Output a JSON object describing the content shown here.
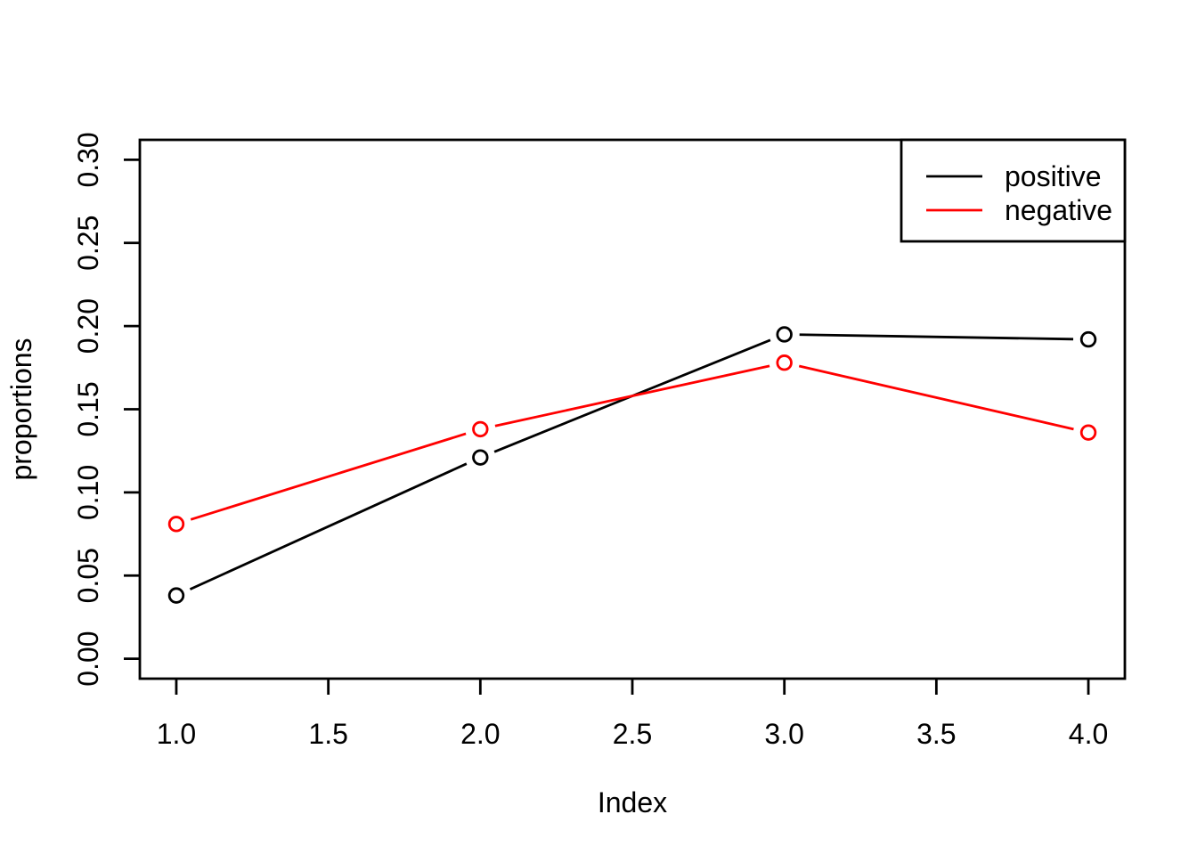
{
  "figure": {
    "background": "#FFFFFF",
    "description": "R base graphics line plot, two series with open-circle markers (type b)"
  },
  "chart_data": {
    "type": "line",
    "title": "",
    "xlabel": "Index",
    "ylabel": "proportions",
    "x": [
      1,
      2,
      3,
      4
    ],
    "series": [
      {
        "name": "positive",
        "color": "#000000",
        "values": [
          0.038,
          0.121,
          0.195,
          0.192
        ]
      },
      {
        "name": "negative",
        "color": "#FF0000",
        "values": [
          0.081,
          0.138,
          0.178,
          0.136
        ]
      }
    ],
    "x_tick_values": [
      1.0,
      1.5,
      2.0,
      2.5,
      3.0,
      3.5,
      4.0
    ],
    "x_tick_labels": [
      "1.0",
      "1.5",
      "2.0",
      "2.5",
      "3.0",
      "3.5",
      "4.0"
    ],
    "y_tick_values": [
      0.0,
      0.05,
      0.1,
      0.15,
      0.2,
      0.25,
      0.3
    ],
    "y_tick_labels": [
      "0.00",
      "0.05",
      "0.10",
      "0.15",
      "0.20",
      "0.25",
      "0.30"
    ],
    "xlim": [
      0.88,
      4.12
    ],
    "ylim": [
      -0.012,
      0.312
    ],
    "grid": false,
    "marker": "open-circle",
    "legend": {
      "position": "top-right",
      "entries": [
        "positive",
        "negative"
      ]
    },
    "colors": {
      "axis": "#000000",
      "background": "#FFFFFF"
    }
  }
}
